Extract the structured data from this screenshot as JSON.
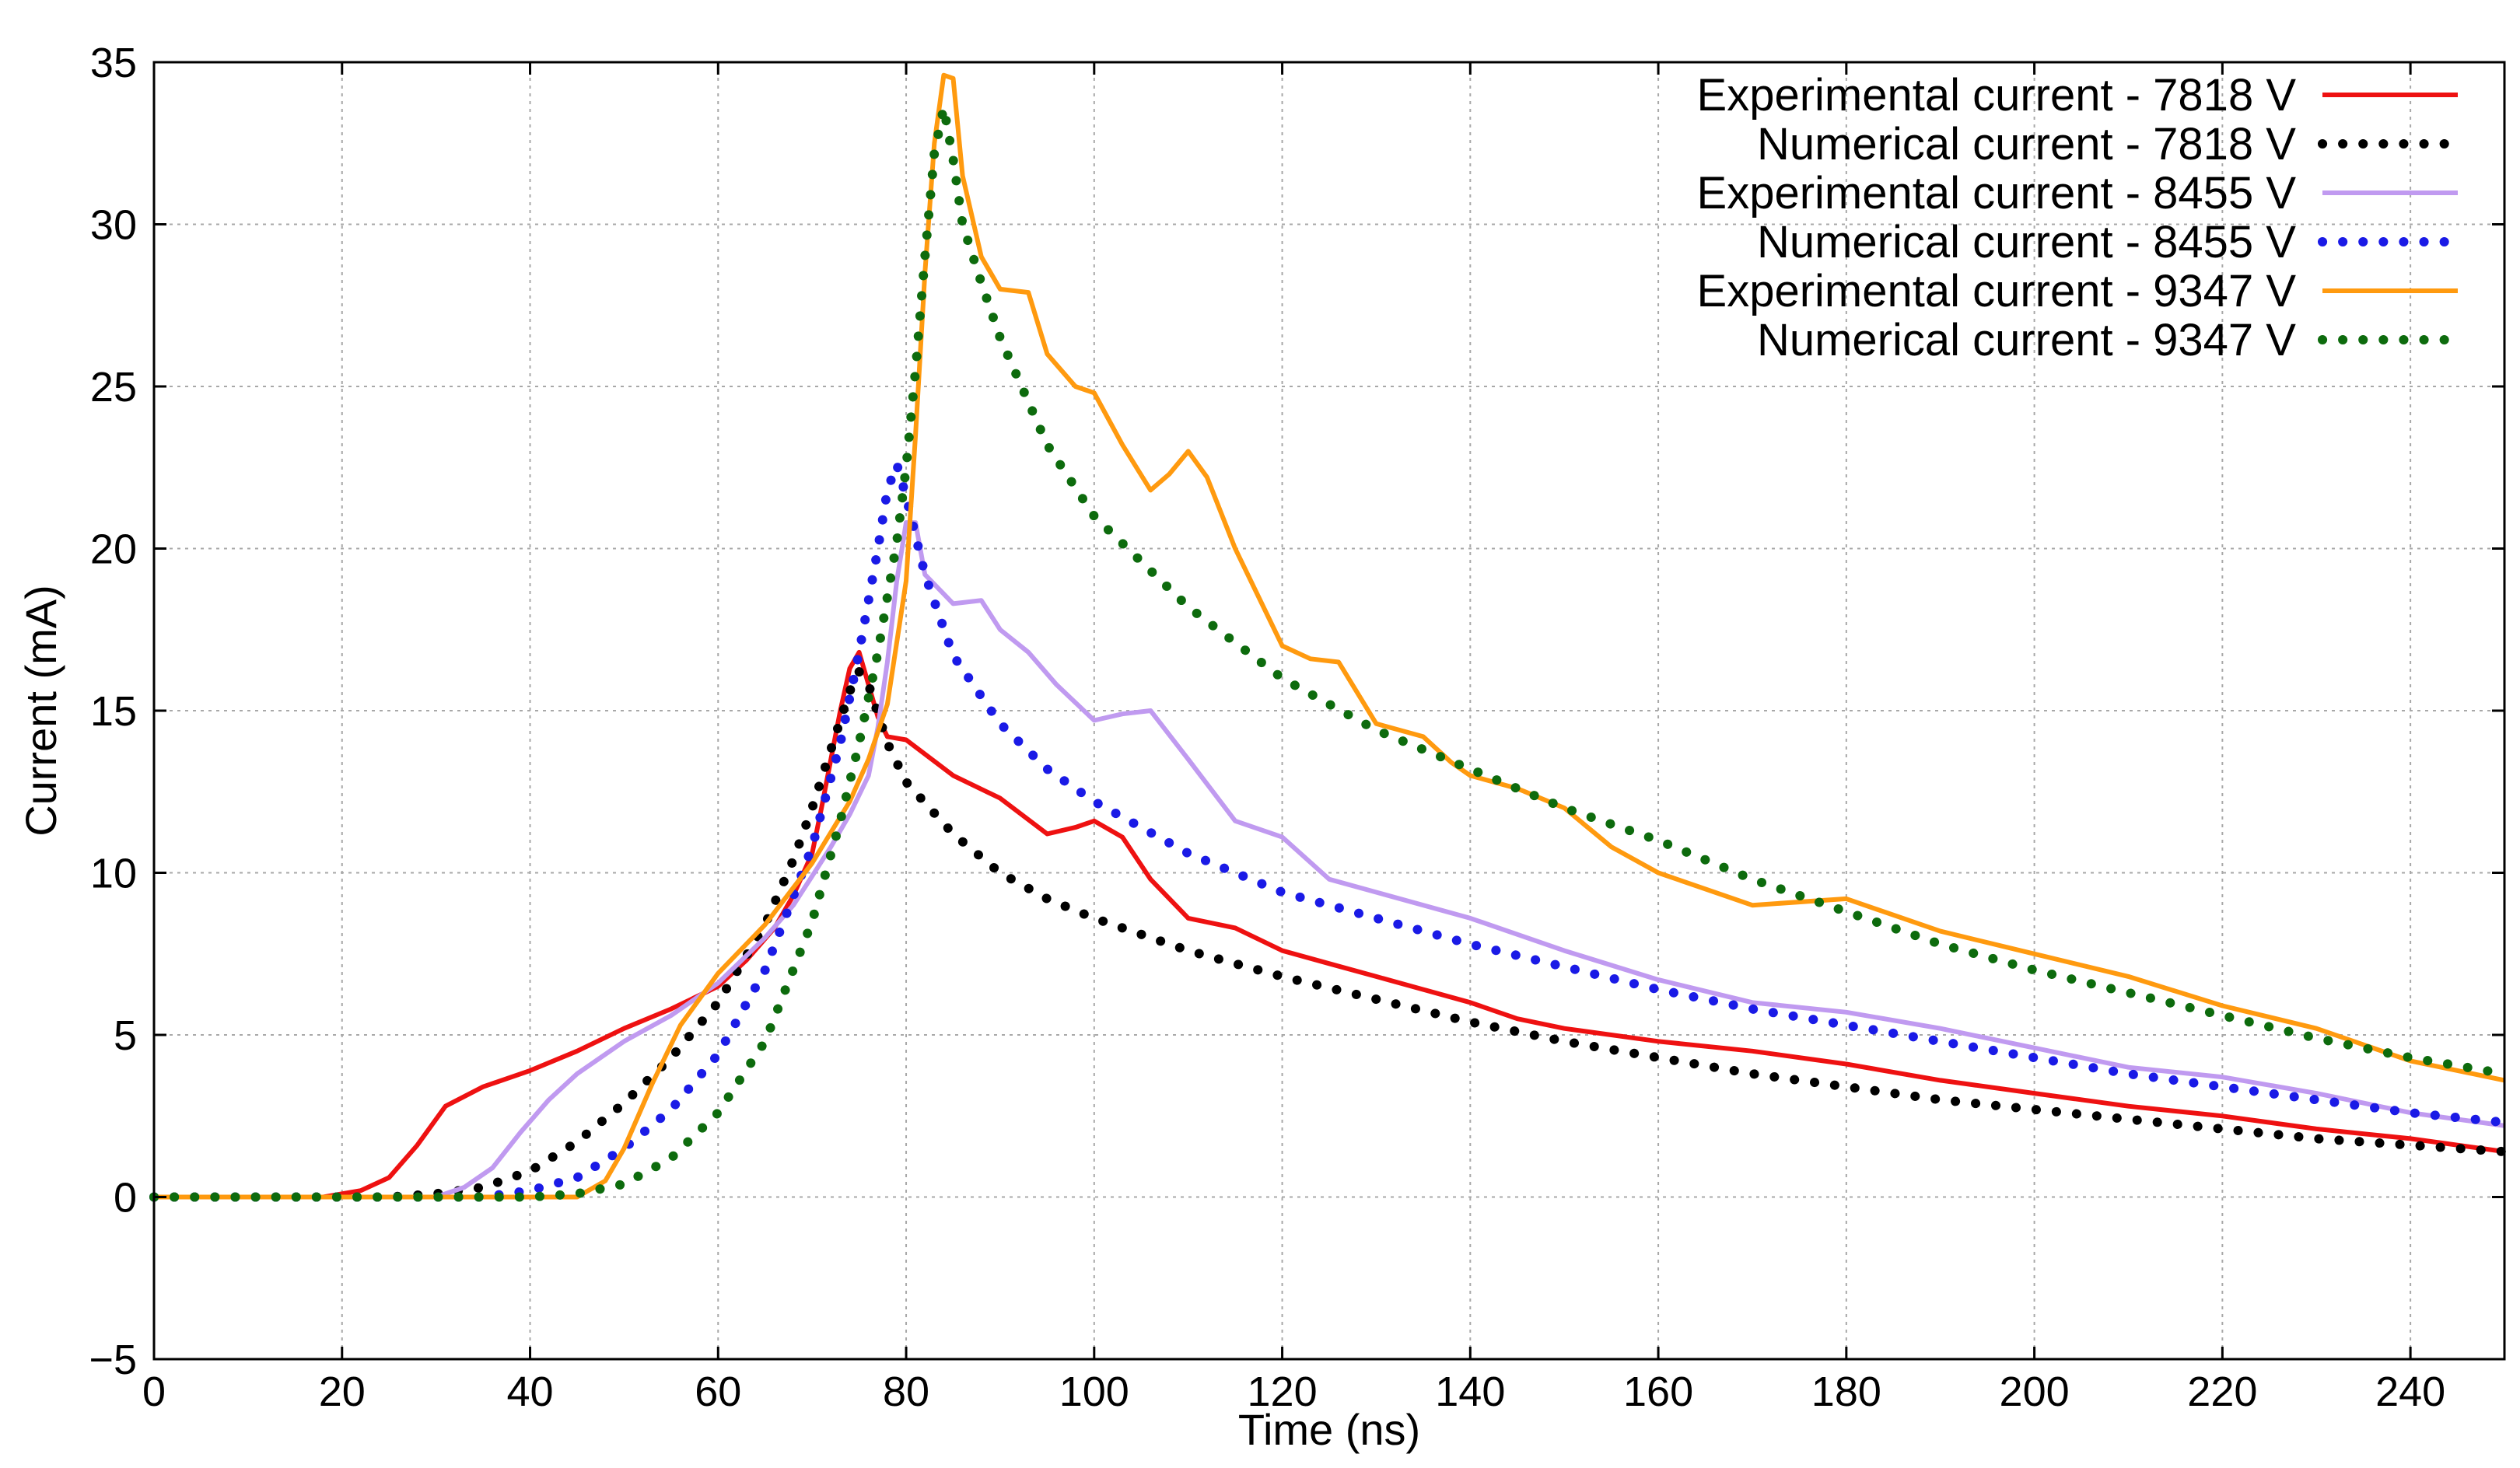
{
  "chart_data": {
    "type": "line",
    "title": "",
    "xlabel": "Time (ns)",
    "ylabel": "Current (mA)",
    "xlim": [
      0,
      250
    ],
    "ylim": [
      -5,
      35
    ],
    "xticks": [
      0,
      20,
      40,
      60,
      80,
      100,
      120,
      140,
      160,
      180,
      200,
      220,
      240
    ],
    "yticks": [
      -5,
      0,
      5,
      10,
      15,
      20,
      25,
      30,
      35
    ],
    "xtick_labels": [
      "0",
      "20",
      "40",
      "60",
      "80",
      "100",
      "120",
      "140",
      "160",
      "180",
      "200",
      "220",
      "240"
    ],
    "ytick_labels": [
      "−5",
      "0",
      "5",
      "10",
      "15",
      "20",
      "25",
      "30",
      "35"
    ],
    "grid": true,
    "legend_position": "top-right",
    "series": [
      {
        "name": "Experimental current - 7818 V",
        "style": "solid",
        "color": "#ee1111",
        "x": [
          0,
          18,
          22,
          25,
          28,
          31,
          35,
          40,
          45,
          50,
          55,
          60,
          63,
          66,
          68,
          70,
          71,
          72,
          73,
          74,
          75,
          76,
          77,
          78,
          80,
          85,
          90,
          95,
          98,
          100,
          103,
          106,
          110,
          115,
          120,
          125,
          130,
          135,
          140,
          145,
          150,
          160,
          170,
          180,
          190,
          200,
          210,
          220,
          230,
          240,
          250
        ],
        "y": [
          0,
          0,
          0.2,
          0.6,
          1.6,
          2.8,
          3.4,
          3.9,
          4.5,
          5.2,
          5.8,
          6.5,
          7.3,
          8.3,
          9.3,
          10.6,
          12.0,
          13.5,
          15.0,
          16.3,
          16.8,
          15.8,
          14.8,
          14.2,
          14.1,
          13.0,
          12.3,
          11.2,
          11.4,
          11.6,
          11.1,
          9.8,
          8.6,
          8.3,
          7.6,
          7.2,
          6.8,
          6.4,
          6.0,
          5.5,
          5.2,
          4.8,
          4.5,
          4.1,
          3.6,
          3.2,
          2.8,
          2.5,
          2.1,
          1.8,
          1.4
        ]
      },
      {
        "name": "Numerical current - 7818 V",
        "style": "dotted",
        "color": "#000000",
        "x": [
          0,
          25,
          30,
          35,
          40,
          45,
          50,
          55,
          60,
          65,
          68,
          70,
          72,
          74,
          75,
          76,
          78,
          80,
          85,
          90,
          95,
          100,
          110,
          120,
          130,
          140,
          150,
          160,
          170,
          180,
          190,
          200,
          210,
          220,
          230,
          240,
          250
        ],
        "y": [
          0,
          0,
          0.1,
          0.3,
          0.8,
          1.7,
          2.9,
          4.3,
          6.0,
          8.4,
          10.4,
          12.0,
          13.8,
          15.6,
          16.2,
          15.8,
          14.0,
          12.8,
          11.2,
          10.0,
          9.2,
          8.6,
          7.6,
          6.8,
          6.1,
          5.4,
          4.8,
          4.3,
          3.8,
          3.4,
          3.0,
          2.7,
          2.4,
          2.1,
          1.8,
          1.6,
          1.4
        ]
      },
      {
        "name": "Experimental current - 8455 V",
        "style": "solid",
        "color": "#c09af0",
        "x": [
          0,
          30,
          33,
          36,
          39,
          42,
          45,
          50,
          55,
          60,
          65,
          68,
          70,
          72,
          74,
          76,
          77,
          78,
          79,
          80,
          81,
          82,
          85,
          88,
          90,
          93,
          96,
          100,
          103,
          106,
          110,
          115,
          120,
          125,
          130,
          140,
          150,
          160,
          170,
          180,
          190,
          200,
          210,
          220,
          230,
          240,
          250
        ],
        "y": [
          0,
          0,
          0.3,
          0.9,
          2.0,
          3.0,
          3.8,
          4.8,
          5.6,
          6.6,
          8.0,
          9.0,
          9.9,
          10.8,
          11.8,
          13.0,
          14.5,
          16.5,
          19.0,
          20.8,
          20.8,
          19.2,
          18.3,
          18.4,
          17.5,
          16.8,
          15.8,
          14.7,
          14.9,
          15.0,
          13.5,
          11.6,
          11.1,
          9.8,
          9.4,
          8.6,
          7.6,
          6.7,
          6.0,
          5.7,
          5.2,
          4.6,
          4.0,
          3.7,
          3.2,
          2.6,
          2.2
        ]
      },
      {
        "name": "Numerical current - 8455 V",
        "style": "dotted",
        "color": "#1a1ae6",
        "x": [
          0,
          35,
          40,
          45,
          50,
          55,
          60,
          65,
          70,
          73,
          75,
          77,
          78,
          79,
          80,
          82,
          85,
          90,
          95,
          100,
          110,
          120,
          130,
          140,
          150,
          160,
          170,
          180,
          190,
          200,
          210,
          220,
          230,
          240,
          250
        ],
        "y": [
          0,
          0,
          0.2,
          0.6,
          1.5,
          2.7,
          4.4,
          7.0,
          10.8,
          14.0,
          16.8,
          20.0,
          21.8,
          22.6,
          21.6,
          19.2,
          16.7,
          14.6,
          13.2,
          12.2,
          10.6,
          9.4,
          8.6,
          7.8,
          7.1,
          6.4,
          5.8,
          5.3,
          4.8,
          4.3,
          3.8,
          3.4,
          3.0,
          2.6,
          2.3
        ]
      },
      {
        "name": "Experimental current - 9347 V",
        "style": "solid",
        "color": "#ff9a0f",
        "x": [
          0,
          45,
          48,
          50,
          53,
          56,
          60,
          65,
          70,
          74,
          76,
          78,
          80,
          81,
          82,
          83,
          84,
          85,
          86,
          88,
          90,
          93,
          95,
          98,
          100,
          103,
          106,
          108,
          110,
          112,
          115,
          120,
          123,
          126,
          130,
          135,
          138,
          140,
          145,
          150,
          155,
          160,
          170,
          180,
          190,
          200,
          210,
          220,
          230,
          240,
          250
        ],
        "y": [
          0,
          0,
          0.5,
          1.5,
          3.5,
          5.3,
          6.9,
          8.4,
          10.3,
          12.2,
          13.5,
          15.2,
          19.0,
          23.5,
          28.5,
          32.5,
          34.6,
          34.5,
          31.5,
          29.0,
          28.0,
          27.9,
          26.0,
          25.0,
          24.8,
          23.2,
          21.8,
          22.3,
          23.0,
          22.2,
          20.0,
          17.0,
          16.6,
          16.5,
          14.6,
          14.2,
          13.4,
          13.0,
          12.6,
          12.0,
          10.8,
          10.0,
          9.0,
          9.2,
          8.2,
          7.5,
          6.8,
          5.9,
          5.2,
          4.2,
          3.6
        ]
      },
      {
        "name": "Numerical current - 9347 V",
        "style": "dotted",
        "color": "#0d6b0d",
        "x": [
          0,
          40,
          45,
          50,
          55,
          60,
          65,
          70,
          73,
          75,
          77,
          79,
          80,
          81,
          82,
          83,
          84,
          85,
          86,
          88,
          90,
          95,
          100,
          105,
          110,
          120,
          130,
          140,
          150,
          160,
          170,
          180,
          190,
          200,
          210,
          220,
          230,
          240,
          250
        ],
        "y": [
          0,
          0,
          0.1,
          0.4,
          1.2,
          2.6,
          4.8,
          8.5,
          11.6,
          14.0,
          16.8,
          20.2,
          22.5,
          25.5,
          29.0,
          32.2,
          33.6,
          32.0,
          30.0,
          28.2,
          26.5,
          23.2,
          21.0,
          19.6,
          18.2,
          16.0,
          14.4,
          13.2,
          12.0,
          11.0,
          9.8,
          8.8,
          7.8,
          7.0,
          6.3,
          5.6,
          4.9,
          4.3,
          3.8
        ]
      }
    ]
  }
}
